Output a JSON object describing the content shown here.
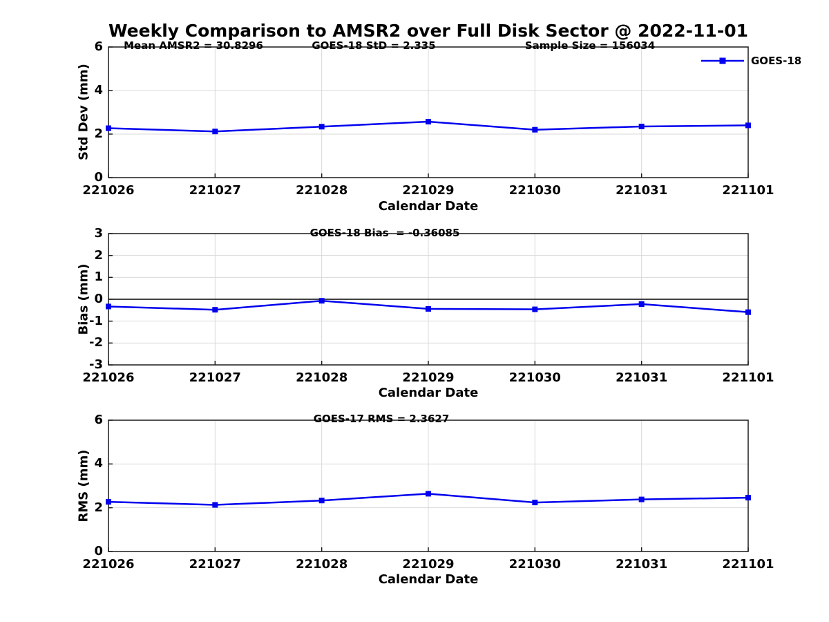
{
  "title": "Weekly Comparison to AMSR2 over Full Disk Sector @ 2022-11-01",
  "legend": {
    "label": "GOES-18",
    "color": "#0000ee"
  },
  "colors": {
    "line": "#0000ee",
    "grid": "#d9d9d9",
    "axis": "#1a1a1a",
    "zero_line": "#000000"
  },
  "x_axis": {
    "label": "Calendar Date"
  },
  "chart_data": [
    {
      "type": "line",
      "name": "std-dev-panel",
      "annotations": [
        "Mean AMSR2 = 30.8296",
        "GOES-18 StD = 2.335",
        "Sample Size = 156034"
      ],
      "ylabel": "Std Dev (mm)",
      "xlabel": "Calendar Date",
      "categories": [
        "221026",
        "221027",
        "221028",
        "221029",
        "221030",
        "221031",
        "221101"
      ],
      "series": [
        {
          "name": "GOES-18",
          "color": "#0000ee",
          "marker": "square",
          "values": [
            2.27,
            2.12,
            2.34,
            2.57,
            2.2,
            2.35,
            2.4
          ]
        }
      ],
      "ylim": [
        0,
        6
      ],
      "yticks": [
        0,
        2,
        4,
        6
      ],
      "grid": true,
      "zero_line": false,
      "legend_position": "top-right-outside"
    },
    {
      "type": "line",
      "name": "bias-panel",
      "annotations": [
        "GOES-18 Bias  = -0.36085"
      ],
      "ylabel": "Bias (mm)",
      "xlabel": "Calendar Date",
      "categories": [
        "221026",
        "221027",
        "221028",
        "221029",
        "221030",
        "221031",
        "221101"
      ],
      "series": [
        {
          "name": "GOES-18",
          "color": "#0000ee",
          "marker": "square",
          "values": [
            -0.33,
            -0.48,
            -0.07,
            -0.44,
            -0.46,
            -0.22,
            -0.59
          ]
        }
      ],
      "ylim": [
        -3,
        3
      ],
      "yticks": [
        -3,
        -2,
        -1,
        0,
        1,
        2,
        3
      ],
      "grid": true,
      "zero_line": true
    },
    {
      "type": "line",
      "name": "rms-panel",
      "annotations": [
        "GOES-17 RMS = 2.3627"
      ],
      "ylabel": "RMS (mm)",
      "xlabel": "Calendar Date",
      "categories": [
        "221026",
        "221027",
        "221028",
        "221029",
        "221030",
        "221031",
        "221101"
      ],
      "series": [
        {
          "name": "GOES-18",
          "color": "#0000ee",
          "marker": "square",
          "values": [
            2.27,
            2.13,
            2.33,
            2.64,
            2.24,
            2.38,
            2.46
          ]
        }
      ],
      "ylim": [
        0,
        6
      ],
      "yticks": [
        0,
        2,
        4,
        6
      ],
      "grid": true,
      "zero_line": false
    }
  ]
}
